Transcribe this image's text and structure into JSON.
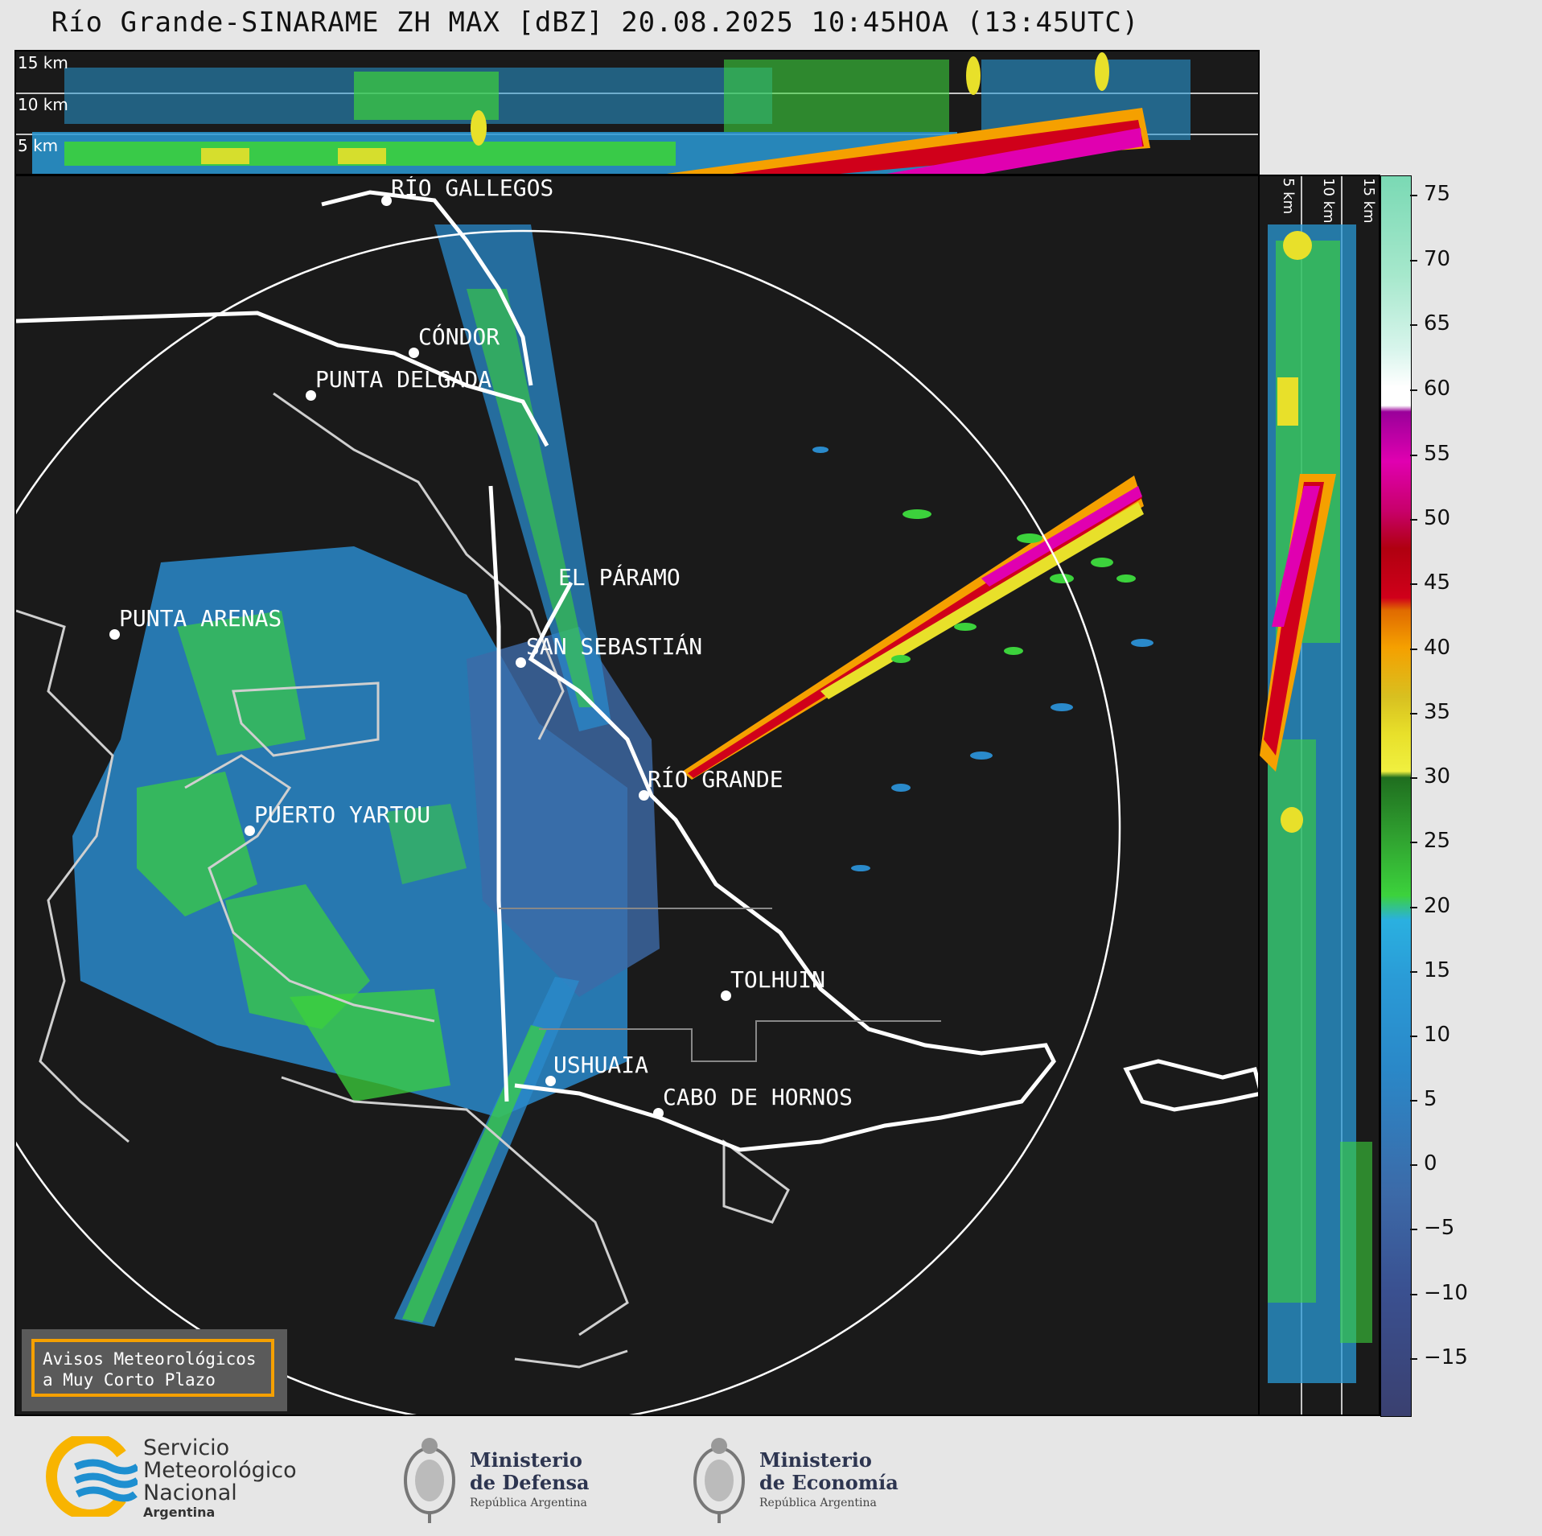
{
  "title": "Río Grande-SINARAME ZH MAX [dBZ] 20.08.2025 10:45HOA (13:45UTC)",
  "top_panel": {
    "height_labels": [
      "15 km",
      "10 km",
      "5 km"
    ]
  },
  "right_panel": {
    "height_labels": [
      "5 km",
      "10 km",
      "15 km"
    ]
  },
  "colorbar": {
    "ticks": [
      "75",
      "70",
      "65",
      "60",
      "55",
      "50",
      "45",
      "40",
      "35",
      "30",
      "25",
      "20",
      "15",
      "10",
      "5",
      "0",
      "−5",
      "−10",
      "−15"
    ],
    "range": [
      -20,
      77
    ]
  },
  "places": {
    "rio_gallegos": "RÍO GALLEGOS",
    "condor": "CÓNDOR",
    "punta_delgada": "PUNTA DELGADA",
    "el_paramo": "EL PÁRAMO",
    "punta_arenas": "PUNTA ARENAS",
    "san_sebastian": "SAN SEBASTIÁN",
    "rio_grande": "RÍO GRANDE",
    "puerto_yartou": "PUERTO YARTOU",
    "tolhuin": "TOLHUIN",
    "ushuaia": "USHUAIA",
    "cabo_de_hornos": "CABO DE HORNOS"
  },
  "notice": {
    "line1": "Avisos Meteorológicos",
    "line2": "a Muy Corto Plazo"
  },
  "logos": {
    "smn": {
      "line1": "Servicio",
      "line2": "Meteorológico",
      "line3": "Nacional",
      "line4": "Argentina"
    },
    "defensa": {
      "line1": "Ministerio",
      "line2": "de Defensa",
      "line3": "República Argentina"
    },
    "economia": {
      "line1": "Ministerio",
      "line2": "de Economía",
      "line3": "República Argentina"
    }
  },
  "colors": {
    "panel_bg": "#1a1a1a",
    "accent_orange": "#f5a000",
    "smn_blue": "#1e8fd0",
    "smn_yellow": "#f8b400"
  }
}
